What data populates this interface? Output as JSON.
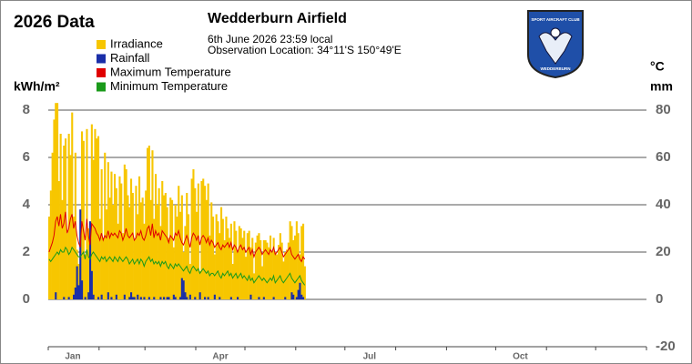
{
  "chart_data": {
    "type": "bar",
    "title": "2026 Data",
    "station": "Wedderburn Airfield",
    "subtitle": "6th June 2026  23:59 local",
    "location": "Observation Location: 34°11'S 150°49'E",
    "y_label": "kWh/m²",
    "y2_labels": [
      "°C",
      "mm"
    ],
    "logo": {
      "top_text": "SPORT AIRCRAFT CLUB",
      "bottom_text": "WEDDERBURN"
    },
    "xlim": [
      0,
      365
    ],
    "xticks": [
      {
        "value": 15,
        "label": "Jan"
      },
      {
        "value": 105,
        "label": "Apr"
      },
      {
        "value": 196,
        "label": "Jul"
      },
      {
        "value": 288,
        "label": "Oct"
      }
    ],
    "minor_xticks": [
      0,
      31,
      59,
      90,
      120,
      151,
      181,
      212,
      243,
      273,
      304,
      334,
      365
    ],
    "ylim": [
      -2,
      9
    ],
    "yticks": [
      0,
      2,
      4,
      6,
      8
    ],
    "y2lim": [
      -20,
      90
    ],
    "y2ticks": [
      -20,
      0,
      20,
      40,
      60,
      80
    ],
    "grid": true,
    "series": [
      {
        "name": "Irradiance",
        "color": "#f7c600",
        "kind": "bar",
        "axis": "y",
        "values": [
          3.5,
          4.6,
          6.2,
          7.6,
          8.3,
          8.3,
          5.0,
          7.0,
          4.2,
          6.5,
          6.8,
          2.8,
          7.0,
          6.1,
          7.9,
          3.5,
          6.2,
          2.1,
          1.5,
          0.8,
          7.1,
          6.7,
          1.9,
          7.2,
          3.0,
          1.0,
          7.4,
          5.9,
          7.2,
          6.8,
          6.9,
          3.4,
          5.5,
          2.6,
          6.2,
          3.8,
          5.8,
          4.3,
          5.4,
          4.0,
          5.3,
          4.7,
          3.2,
          5.2,
          4.9,
          2.8,
          5.7,
          5.5,
          4.4,
          3.9,
          5.1,
          4.5,
          2.5,
          4.8,
          3.6,
          5.2,
          4.1,
          4.3,
          3.2,
          4.6,
          6.4,
          6.5,
          4.2,
          6.3,
          3.4,
          5.3,
          4.0,
          4.7,
          3.1,
          5.0,
          4.4,
          4.5,
          3.9,
          2.6,
          4.3,
          4.2,
          2.2,
          4.0,
          3.5,
          4.8,
          3.7,
          4.4,
          2.0,
          3.1,
          4.5,
          3.6,
          1.5,
          5.1,
          5.5,
          4.7,
          3.7,
          4.9,
          1.2,
          5.0,
          5.1,
          4.8,
          4.2,
          4.9,
          2.7,
          4.1,
          3.5,
          1.9,
          3.6,
          3.3,
          2.8,
          3.9,
          3.4,
          2.5,
          3.5,
          3.0,
          2.6,
          3.2,
          1.5,
          3.3,
          2.9,
          2.0,
          3.1,
          3.0,
          2.6,
          2.9,
          1.8,
          2.8,
          2.9,
          2.2,
          2.6,
          1.1,
          2.4,
          2.7,
          2.8,
          2.5,
          1.4,
          2.5,
          2.5,
          2.4,
          2.2,
          2.7,
          2.0,
          2.6,
          2.0,
          1.9,
          2.3,
          2.8,
          2.4,
          1.6,
          2.0,
          2.1,
          2.4,
          3.3,
          3.1,
          2.5,
          2.7,
          3.3,
          2.8,
          1.9,
          3.1,
          3.2,
          1.4
        ]
      },
      {
        "name": "Rainfall",
        "color": "#1a2ea8",
        "kind": "bar",
        "axis": "y2",
        "values": [
          0,
          0,
          0,
          0,
          3,
          0,
          0,
          0,
          0,
          1,
          0,
          0,
          1,
          0,
          0,
          2,
          5,
          14,
          6,
          38,
          8,
          0,
          1,
          0,
          3,
          33,
          12,
          2,
          0,
          0,
          1,
          0,
          2,
          0,
          0,
          0,
          3,
          0,
          1,
          0,
          0,
          2,
          0,
          0,
          0,
          0,
          2,
          0,
          0,
          1,
          3,
          1,
          1,
          0,
          2,
          0,
          1,
          0,
          1,
          0,
          0,
          1,
          0,
          0,
          1,
          0,
          0,
          0,
          1,
          0,
          1,
          0,
          1,
          1,
          0,
          0,
          2,
          1,
          0,
          0,
          1,
          9,
          8,
          3,
          1,
          0,
          2,
          0,
          0,
          1,
          0,
          0,
          3,
          0,
          0,
          1,
          0,
          1,
          0,
          0,
          0,
          2,
          0,
          0,
          1,
          0,
          0,
          0,
          0,
          0,
          0,
          1,
          0,
          0,
          0,
          1,
          0,
          0,
          0,
          0,
          0,
          0,
          0,
          2,
          0,
          0,
          0,
          0,
          1,
          0,
          0,
          1,
          0,
          0,
          0,
          0,
          0,
          1,
          0,
          0,
          0,
          0,
          0,
          0,
          1,
          0,
          0,
          0,
          3,
          2,
          0,
          1,
          4,
          7,
          2,
          1,
          0
        ]
      },
      {
        "name": "Maximum Temperature",
        "color": "#e00000",
        "kind": "line",
        "axis": "y2",
        "values": [
          20,
          22,
          24,
          27,
          33,
          35,
          31,
          36,
          30,
          32,
          37,
          28,
          30,
          34,
          36,
          30,
          33,
          27,
          24,
          22,
          33,
          29,
          25,
          34,
          27,
          23,
          32,
          31,
          30,
          28,
          27,
          25,
          28,
          25,
          27,
          26,
          29,
          26,
          28,
          27,
          28,
          27,
          26,
          29,
          28,
          25,
          27,
          30,
          27,
          26,
          27,
          28,
          25,
          26,
          28,
          27,
          29,
          26,
          25,
          27,
          30,
          31,
          27,
          32,
          26,
          29,
          27,
          28,
          25,
          29,
          28,
          27,
          26,
          24,
          27,
          26,
          25,
          28,
          27,
          29,
          26,
          24,
          23,
          25,
          27,
          25,
          22,
          26,
          28,
          27,
          25,
          27,
          23,
          26,
          27,
          26,
          24,
          26,
          23,
          25,
          24,
          22,
          23,
          24,
          22,
          21,
          23,
          22,
          23,
          24,
          22,
          24,
          21,
          23,
          22,
          20,
          22,
          23,
          21,
          22,
          20,
          21,
          22,
          19,
          21,
          18,
          20,
          21,
          22,
          21,
          19,
          20,
          21,
          20,
          19,
          21,
          20,
          22,
          19,
          20,
          21,
          22,
          20,
          18,
          19,
          20,
          21,
          22,
          19,
          18,
          17,
          18,
          19,
          17,
          16,
          18,
          17
        ]
      },
      {
        "name": "Minimum Temperature",
        "color": "#1a9a1a",
        "kind": "line",
        "axis": "y2",
        "values": [
          17,
          16,
          17,
          18,
          19,
          20,
          19,
          21,
          20,
          20,
          22,
          21,
          19,
          20,
          22,
          21,
          20,
          19,
          18,
          18,
          19,
          20,
          17,
          21,
          18,
          17,
          19,
          20,
          19,
          18,
          17,
          16,
          18,
          17,
          18,
          16,
          17,
          18,
          17,
          16,
          18,
          17,
          16,
          18,
          17,
          16,
          17,
          18,
          17,
          15,
          16,
          17,
          15,
          16,
          17,
          15,
          17,
          16,
          14,
          16,
          17,
          18,
          16,
          17,
          15,
          16,
          15,
          16,
          14,
          16,
          15,
          16,
          14,
          13,
          15,
          14,
          13,
          15,
          14,
          15,
          14,
          13,
          12,
          13,
          14,
          12,
          11,
          13,
          14,
          13,
          12,
          13,
          11,
          12,
          13,
          12,
          11,
          12,
          10,
          11,
          11,
          10,
          11,
          12,
          10,
          9,
          11,
          10,
          11,
          12,
          10,
          11,
          9,
          10,
          11,
          9,
          10,
          11,
          9,
          10,
          9,
          8,
          10,
          8,
          9,
          7,
          8,
          9,
          10,
          9,
          8,
          9,
          8,
          7,
          8,
          9,
          8,
          10,
          7,
          8,
          9,
          10,
          8,
          7,
          8,
          9,
          10,
          11,
          9,
          8,
          7,
          8,
          9,
          10,
          8,
          7,
          6
        ]
      }
    ]
  }
}
